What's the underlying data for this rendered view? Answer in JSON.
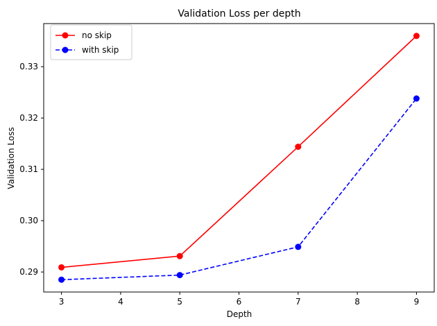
{
  "chart_data": {
    "type": "line",
    "title": "Validation Loss per depth",
    "xlabel": "Depth",
    "ylabel": "Validation Loss",
    "xlim": [
      2.7,
      9.3
    ],
    "ylim": [
      0.2861,
      0.3384
    ],
    "xticks": [
      3,
      4,
      5,
      6,
      7,
      8,
      9
    ],
    "yticks": [
      0.29,
      0.3,
      0.31,
      0.32,
      0.33
    ],
    "ytick_labels": [
      "0.29",
      "0.30",
      "0.31",
      "0.32",
      "0.33"
    ],
    "grid": false,
    "legend_position": "upper-left",
    "series": [
      {
        "name": "no skip",
        "color": "#ff0000",
        "linestyle": "solid",
        "marker": "circle",
        "x": [
          3,
          5,
          7,
          9
        ],
        "y": [
          0.2909,
          0.2931,
          0.3144,
          0.336
        ]
      },
      {
        "name": "with skip",
        "color": "#0000ff",
        "linestyle": "dashed",
        "marker": "circle",
        "x": [
          3,
          5,
          7,
          9
        ],
        "y": [
          0.2885,
          0.2894,
          0.2949,
          0.3238
        ]
      }
    ]
  }
}
